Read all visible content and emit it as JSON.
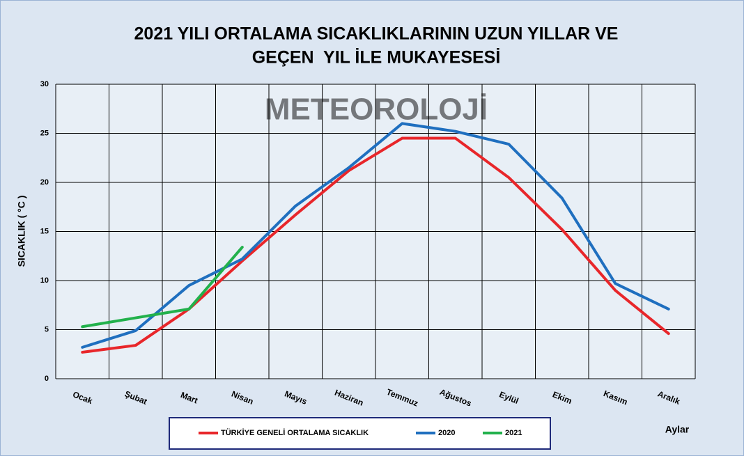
{
  "chart_data": {
    "type": "line",
    "title": [
      "2021 YILI ORTALAMA SICAKLIKLARININ UZUN YILLAR VE",
      "GEÇEN  YIL İLE MUKAYESESİ"
    ],
    "watermark": "METEOROLOJİ",
    "y_label": "SICAKLIK ( °C )",
    "x_label": "Aylar",
    "categories": [
      "Ocak",
      "Şubat",
      "Mart",
      "Nisan",
      "Mayıs",
      "Haziran",
      "Temmuz",
      "Ağustos",
      "Eylül",
      "Ekim",
      "Kasım",
      "Aralık"
    ],
    "series": [
      {
        "name": "TÜRKİYE GENELİ ORTALAMA SICAKLIK",
        "color": "#e8262a",
        "values": [
          2.7,
          3.4,
          7.1,
          12.0,
          16.7,
          21.2,
          24.5,
          24.5,
          20.5,
          15.2,
          9.0,
          4.6
        ]
      },
      {
        "name": "2020",
        "color": "#1f6fbf",
        "values": [
          3.2,
          4.9,
          9.5,
          12.2,
          17.6,
          21.5,
          26.0,
          25.2,
          23.9,
          18.4,
          9.7,
          7.1
        ]
      },
      {
        "name": "2021",
        "color": "#22b14c",
        "values": [
          5.3,
          6.2,
          7.1,
          13.4,
          null,
          null,
          null,
          null,
          null,
          null,
          null,
          null
        ]
      }
    ],
    "ylim": [
      0,
      30
    ],
    "yticks": [
      0,
      5,
      10,
      15,
      20,
      25,
      30
    ],
    "grid": true,
    "legend": "bottom"
  }
}
